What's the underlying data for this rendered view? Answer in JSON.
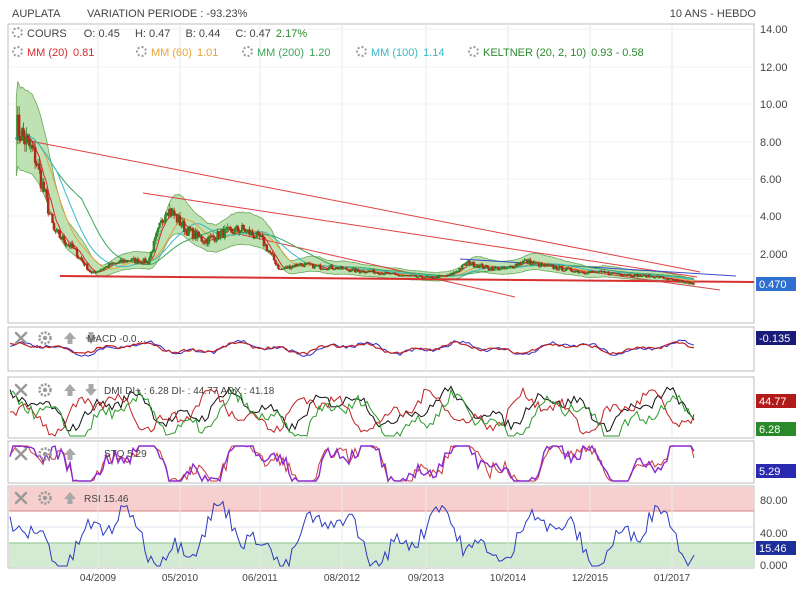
{
  "header": {
    "symbol": "AUPLATA",
    "variation_label": "VARIATION PERIODE : -93.23%",
    "period_label": "10 ANS - HEBDO"
  },
  "quote": {
    "name": "COURS",
    "open": "O: 0.45",
    "high": "H: 0.47",
    "low": "B: 0.44",
    "close": "C: 0.47",
    "change": "2.17%"
  },
  "indicators": [
    {
      "label": "MM (20)",
      "value": "0.81",
      "color": "#d62a2a"
    },
    {
      "label": "MM (60)",
      "value": "1.01",
      "color": "#e8a33a"
    },
    {
      "label": "MM (200)",
      "value": "1.20",
      "color": "#3aa55a"
    },
    {
      "label": "MM (100)",
      "value": "1.14",
      "color": "#3ab8c8"
    },
    {
      "label": "KELTNER (20, 2, 10)",
      "value": "0.93 - 0.58",
      "color": "#2a8a2a"
    }
  ],
  "colors": {
    "candle_up": "#2a8a2a",
    "candle_down": "#b02a1a",
    "trendline": "#e04040",
    "support": "#d93030",
    "keltner_fill": "#a8d89a",
    "macd": "#2a2ad0",
    "signal": "#c02020",
    "dmi_plus": "#2a9a2a",
    "dmi_minus": "#c02020",
    "adx": "#111111",
    "sto": "#8a2ad0",
    "rsi": "#2a3ac0"
  },
  "chart_data": [
    {
      "type": "line",
      "name": "price",
      "title": "AUPLATA",
      "y_scale": "log",
      "y_ticks": [
        "14.00",
        "12.00",
        "10.00",
        "8.00",
        "6.00",
        "4.00",
        "2.000",
        "0.470"
      ],
      "x_ticks": [
        "04/2009",
        "05/2010",
        "06/2011",
        "08/2012",
        "09/2013",
        "10/2014",
        "12/2015",
        "01/2017"
      ],
      "x": [
        "2008-04",
        "2008-07",
        "2008-10",
        "2009-01",
        "2009-04",
        "2009-07",
        "2009-10",
        "2010-01",
        "2010-04",
        "2010-07",
        "2010-10",
        "2011-01",
        "2011-04",
        "2011-07",
        "2011-10",
        "2012-01",
        "2012-04",
        "2012-07",
        "2012-10",
        "2013-01",
        "2013-04",
        "2013-07",
        "2013-10",
        "2014-01",
        "2014-04",
        "2014-07",
        "2014-10",
        "2015-01",
        "2015-04",
        "2015-07",
        "2015-10",
        "2016-01",
        "2016-04",
        "2016-07",
        "2016-10",
        "2017-01",
        "2017-04"
      ],
      "close": [
        8.9,
        7.2,
        3.2,
        2.3,
        1.0,
        1.45,
        1.7,
        1.6,
        4.5,
        3.3,
        2.7,
        3.1,
        3.3,
        2.8,
        1.2,
        1.5,
        1.35,
        1.3,
        1.15,
        1.1,
        0.95,
        0.85,
        0.8,
        0.9,
        1.55,
        1.3,
        1.25,
        1.65,
        1.4,
        1.25,
        1.1,
        1.05,
        1.0,
        0.9,
        0.85,
        0.65,
        0.47
      ],
      "last_value": "0.470"
    },
    {
      "type": "line",
      "name": "macd",
      "label": "MACD",
      "value_label": "-0.0…",
      "last_value": "-0.135"
    },
    {
      "type": "line",
      "name": "dmi",
      "label": "DMI DI+ : 6.28 DI- : 44.77 ADX : 41.18",
      "values": {
        "di_plus": 6.28,
        "di_minus": 44.77,
        "adx": 41.18
      },
      "last_values": [
        "44.77",
        "6.28"
      ]
    },
    {
      "type": "line",
      "name": "sto",
      "label": "STO",
      "value_label": "5.29",
      "last_value": "5.29"
    },
    {
      "type": "line",
      "name": "rsi",
      "label": "RSI",
      "value_label": "15.46",
      "y_ticks": [
        "80.00",
        "40.00",
        "0.000"
      ],
      "last_value": "15.46"
    }
  ]
}
